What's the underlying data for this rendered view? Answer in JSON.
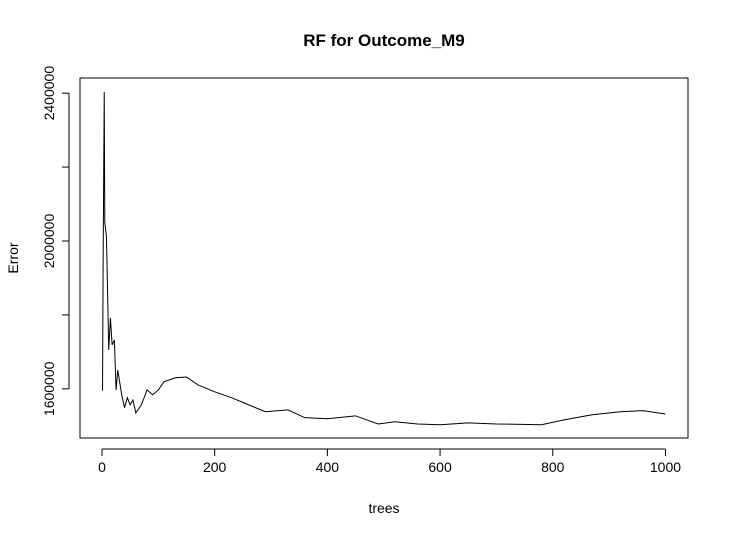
{
  "chart_data": {
    "type": "line",
    "title": "RF for Outcome_M9",
    "x_label": "trees",
    "y_label": "Error",
    "x": [
      1,
      2,
      4,
      5,
      8,
      12,
      15,
      18,
      22,
      25,
      28,
      35,
      40,
      45,
      50,
      55,
      60,
      70,
      80,
      90,
      100,
      110,
      130,
      150,
      170,
      200,
      230,
      260,
      290,
      330,
      360,
      400,
      450,
      490,
      520,
      560,
      600,
      650,
      700,
      780,
      820,
      870,
      920,
      960,
      1000
    ],
    "series": [
      {
        "name": "Error",
        "color": "#000000",
        "values": [
          1595000,
          1935000,
          2403000,
          2050000,
          2010000,
          1705000,
          1792000,
          1719000,
          1732000,
          1597000,
          1651000,
          1584000,
          1549000,
          1576000,
          1557000,
          1570000,
          1535000,
          1557000,
          1597000,
          1584000,
          1597000,
          1619000,
          1630000,
          1632000,
          1611000,
          1592000,
          1576000,
          1557000,
          1538000,
          1543000,
          1522000,
          1519000,
          1527000,
          1505000,
          1511000,
          1505000,
          1503000,
          1508000,
          1505000,
          1503000,
          1516000,
          1530000,
          1538000,
          1541000,
          1532000
        ]
      }
    ],
    "xlim": [
      -39,
      1040
    ],
    "ylim": [
      1467000,
      2441000
    ],
    "xticks": [
      0,
      200,
      400,
      600,
      800,
      1000
    ],
    "yticks": [
      1600000,
      {
        "value": 1800000,
        "label": null
      },
      2000000,
      {
        "value": 2200000,
        "label": null
      },
      2400000
    ]
  }
}
